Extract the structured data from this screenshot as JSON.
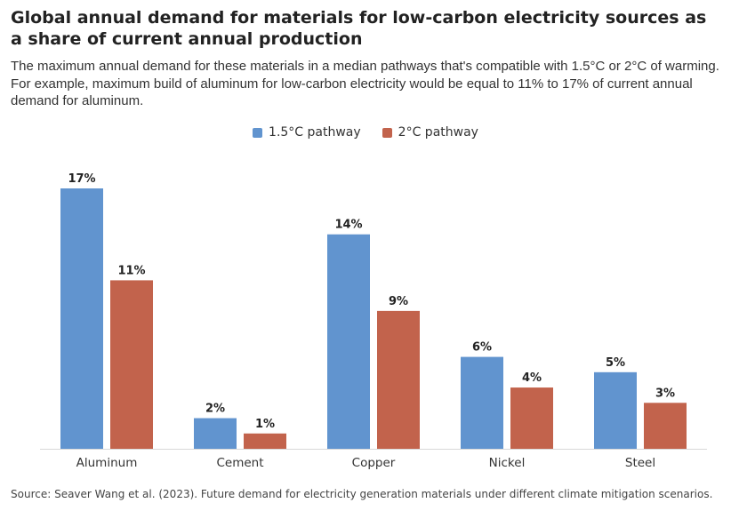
{
  "title": "Global annual demand for materials for low-carbon electricity sources as a share of current annual production",
  "subtitle": "The maximum annual demand for these materials in a median pathways that's compatible with 1.5°C or 2°C of warming. For example, maximum build of aluminum for low-carbon electricity would be equal to 11% to 17% of current annual demand for aluminum.",
  "source": "Source: Seaver Wang et al. (2023). Future demand for electricity generation materials under different climate mitigation scenarios.",
  "chart_data": {
    "type": "bar",
    "categories": [
      "Aluminum",
      "Cement",
      "Copper",
      "Nickel",
      "Steel"
    ],
    "series": [
      {
        "name": "1.5°C pathway",
        "color": "#6194cf",
        "values": [
          17,
          2,
          14,
          6,
          5
        ],
        "labels": [
          "17%",
          "2%",
          "14%",
          "6%",
          "5%"
        ]
      },
      {
        "name": "2°C pathway",
        "color": "#c2634c",
        "values": [
          11,
          1,
          9,
          4,
          3
        ],
        "labels": [
          "11%",
          "1%",
          "9%",
          "4%",
          "3%"
        ]
      }
    ],
    "ylim": [
      0,
      17
    ],
    "unit": "%",
    "grid": false,
    "legend_position": "top-center"
  }
}
